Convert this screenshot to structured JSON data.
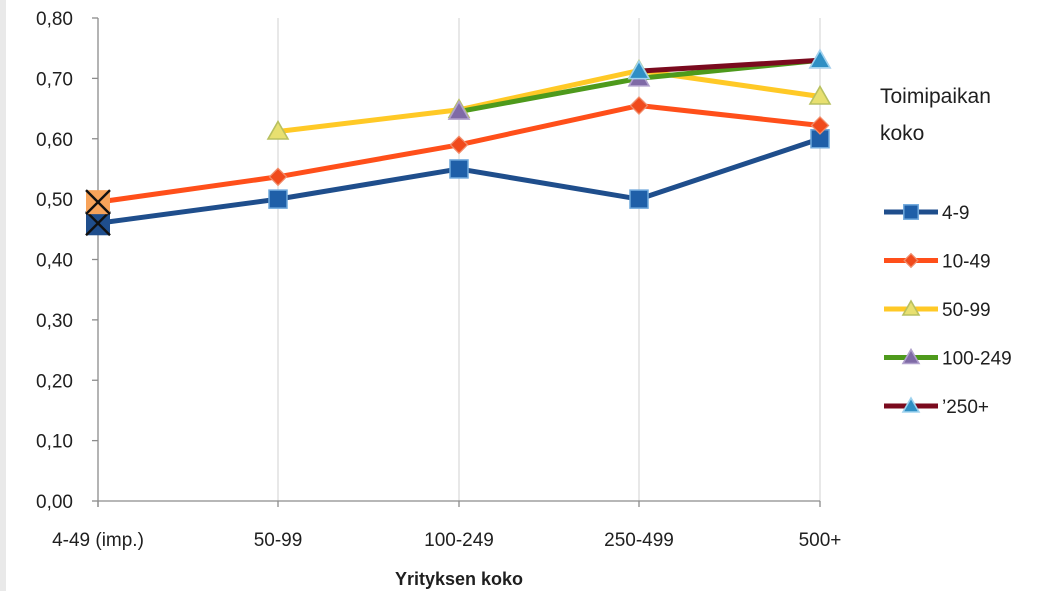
{
  "chart_data": {
    "type": "line",
    "categories": [
      "4-49 (imp.)",
      "50-99",
      "100-249",
      "250-499",
      "500+"
    ],
    "xlabel": "Yrityksen koko",
    "ylabel": "",
    "ylim": [
      0,
      0.8
    ],
    "ytick_step": 0.1,
    "ytick_labels": [
      "0,00",
      "0,10",
      "0,20",
      "0,30",
      "0,40",
      "0,50",
      "0,60",
      "0,70",
      "0,80"
    ],
    "grid": "vertical",
    "legend": {
      "title_lines": [
        "Toimipaikan",
        "koko"
      ],
      "placement": "right"
    },
    "series": [
      {
        "name": "4-9",
        "values": [
          0.46,
          0.5,
          0.55,
          0.5,
          0.6
        ],
        "color": "#1f4e8c",
        "marker": "square",
        "marker_fill": "#1f5fa8",
        "marker_edge": "#6fa8dc"
      },
      {
        "name": "10-49",
        "values": [
          0.495,
          0.537,
          0.59,
          0.655,
          0.622
        ],
        "color": "#ff4f1a",
        "marker": "diamond",
        "marker_fill": "#f04a1c",
        "marker_edge": "#f08c6a"
      },
      {
        "name": "50-99",
        "values": [
          null,
          0.612,
          0.648,
          0.713,
          0.67
        ],
        "color": "#ffc926",
        "marker": "triangle",
        "marker_fill": "#e8e070",
        "marker_edge": "#b8c060"
      },
      {
        "name": "100-249",
        "values": [
          null,
          null,
          0.645,
          0.7,
          0.73
        ],
        "color": "#4e9a1c",
        "marker": "triangle",
        "marker_fill": "#7f6aa6",
        "marker_edge": "#b0a0cc"
      },
      {
        "name": "’250+",
        "values": [
          null,
          null,
          null,
          0.712,
          0.73
        ],
        "color": "#7a0a1e",
        "marker": "triangle",
        "marker_fill": "#2f8fc4",
        "marker_edge": "#9fd3ef"
      }
    ],
    "annotations": [
      {
        "series": "4-9",
        "category": "4-49 (imp.)",
        "marker": "x-square",
        "fill": "#1f4e8c"
      },
      {
        "series": "10-49",
        "category": "4-49 (imp.)",
        "marker": "x-square",
        "fill": "#f7a35a"
      }
    ]
  }
}
